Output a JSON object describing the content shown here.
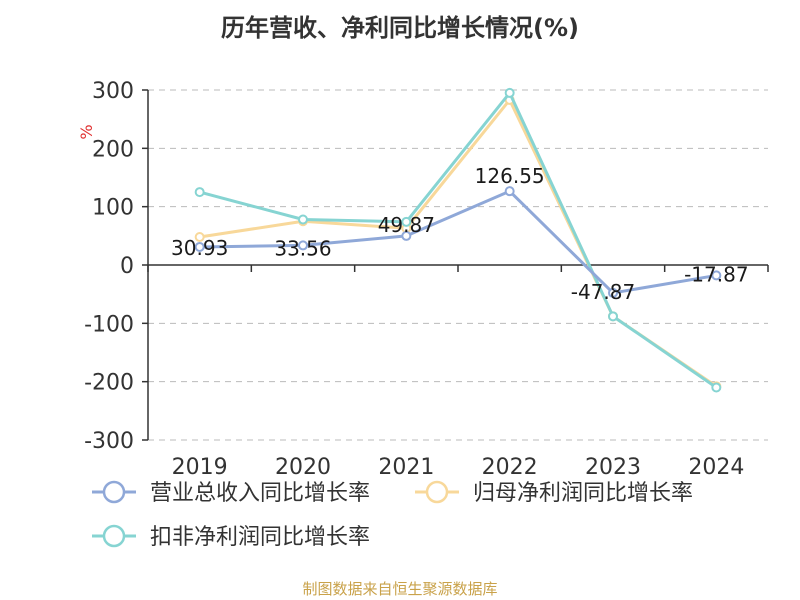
{
  "title": "历年营收、净利同比增长情况(%)",
  "source": "制图数据来自恒生聚源数据库",
  "colors": {
    "source": "#c9a24a",
    "unit": "#e03030",
    "axis": "#333333",
    "grid": "#bbbbbb"
  },
  "chart_data": {
    "type": "line",
    "title": "历年营收、净利同比增长情况(%)",
    "ylabel": "%",
    "xlabel": "",
    "categories": [
      "2019",
      "2020",
      "2021",
      "2022",
      "2023",
      "2024"
    ],
    "ylim": [
      -300,
      300
    ],
    "yticks": [
      300,
      200,
      100,
      0,
      -100,
      -200,
      -300
    ],
    "grid": true,
    "legend_position": "bottom",
    "series": [
      {
        "name": "营业总收入同比增长率",
        "color": "#8fa8d8",
        "values": [
          30.93,
          33.56,
          49.87,
          126.55,
          -47.87,
          -17.87
        ],
        "labels": [
          "30.93",
          "33.56",
          "49.87",
          "126.55",
          "-47.87",
          "-17.87"
        ]
      },
      {
        "name": "归母净利润同比增长率",
        "color": "#f8d89a",
        "values": [
          48,
          75,
          63,
          283,
          -88,
          -208
        ],
        "labels": []
      },
      {
        "name": "扣非净利润同比增长率",
        "color": "#86d4d2",
        "values": [
          125,
          78,
          74,
          295,
          -88,
          -210
        ],
        "labels": []
      }
    ]
  }
}
